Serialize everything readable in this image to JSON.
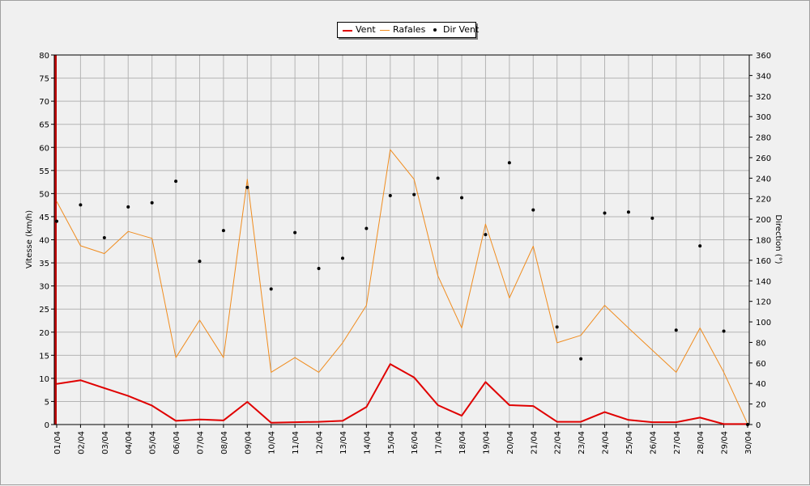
{
  "chart_data": {
    "type": "line",
    "categories": [
      "01/04",
      "02/04",
      "03/04",
      "04/04",
      "05/04",
      "06/04",
      "07/04",
      "08/04",
      "09/04",
      "10/04",
      "11/04",
      "12/04",
      "13/04",
      "14/04",
      "15/04",
      "16/04",
      "17/04",
      "18/04",
      "19/04",
      "20/04",
      "21/04",
      "22/04",
      "23/04",
      "24/04",
      "25/04",
      "26/04",
      "27/04",
      "28/04",
      "29/04",
      "30/04"
    ],
    "ylabel": "Vitesse (km/h)",
    "y2label": "Direction (°)",
    "ylim": [
      0,
      80
    ],
    "y2lim": [
      0,
      360
    ],
    "yticks": [
      0,
      5,
      10,
      15,
      20,
      25,
      30,
      35,
      40,
      45,
      50,
      55,
      60,
      65,
      70,
      75,
      80
    ],
    "y2ticks": [
      0,
      20,
      40,
      60,
      80,
      100,
      120,
      140,
      160,
      180,
      200,
      220,
      240,
      260,
      280,
      300,
      320,
      340,
      360
    ],
    "grid": true,
    "legend_position": "top-center",
    "series": [
      {
        "name": "Vent",
        "kind": "line",
        "axis": "left",
        "color": "#e00000",
        "values": [
          8.8,
          9.6,
          7.9,
          6.2,
          4.1,
          0.8,
          1.1,
          0.9,
          4.9,
          0.4,
          0.5,
          0.6,
          0.8,
          3.8,
          13.1,
          10.2,
          4.2,
          1.9,
          9.2,
          4.2,
          4.0,
          0.6,
          0.6,
          2.7,
          1.0,
          0.5,
          0.5,
          1.5,
          0.1,
          0.1
        ]
      },
      {
        "name": "Rafales",
        "kind": "line",
        "axis": "left",
        "color": "#f08c1e",
        "values": [
          48.3,
          38.7,
          37.0,
          41.8,
          40.3,
          14.5,
          22.6,
          14.5,
          53.1,
          11.3,
          14.5,
          11.3,
          17.7,
          25.8,
          59.5,
          53.1,
          32.2,
          20.9,
          43.4,
          27.4,
          38.6,
          17.7,
          19.3,
          25.8,
          20.9,
          16.1,
          11.3,
          20.9,
          11.3,
          0.1
        ]
      },
      {
        "name": "Dir Vent",
        "kind": "scatter",
        "axis": "right",
        "color": "#000000",
        "values": [
          198,
          214,
          182,
          212,
          216,
          237,
          159,
          189,
          231,
          132,
          187,
          152,
          162,
          191,
          223,
          224,
          240,
          221,
          185,
          255,
          209,
          95,
          64,
          206,
          207,
          201,
          92,
          174,
          91,
          0
        ]
      }
    ]
  }
}
